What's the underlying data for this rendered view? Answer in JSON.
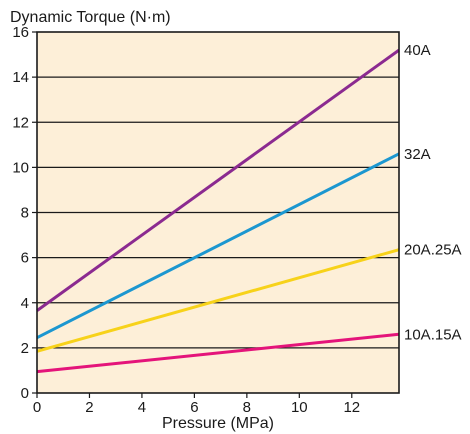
{
  "chart_data": {
    "type": "line",
    "title": "",
    "ylabel": "Dynamic Torque (N·m)",
    "xlabel": "Pressure (MPa)",
    "xlim": [
      0,
      13.8
    ],
    "ylim": [
      0,
      16
    ],
    "x_ticks": [
      0,
      2,
      4,
      6,
      8,
      10,
      12
    ],
    "y_ticks": [
      0,
      2,
      4,
      6,
      8,
      10,
      12,
      14,
      16
    ],
    "grid": "horizontal",
    "legend": "labels at right end of lines",
    "plot_background": "#fdefd8",
    "series": [
      {
        "name": "40A",
        "color": "#8b2a90",
        "x": [
          0,
          13.8
        ],
        "y": [
          3.65,
          15.2
        ]
      },
      {
        "name": "32A",
        "color": "#1c97d0",
        "x": [
          0,
          13.8
        ],
        "y": [
          2.45,
          10.6
        ]
      },
      {
        "name": "20A.25A",
        "color": "#f7d21a",
        "x": [
          0,
          13.8
        ],
        "y": [
          1.85,
          6.35
        ]
      },
      {
        "name": "10A.15A",
        "color": "#e4147a",
        "x": [
          0,
          13.8
        ],
        "y": [
          0.95,
          2.6
        ]
      }
    ]
  }
}
